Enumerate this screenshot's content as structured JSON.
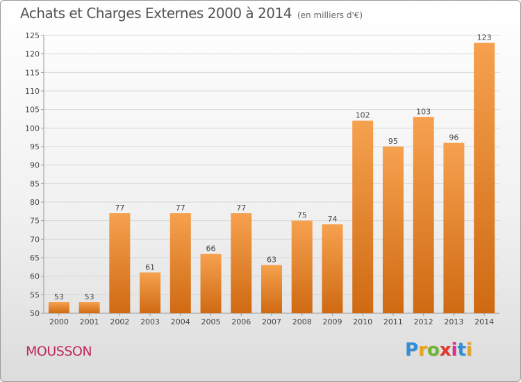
{
  "header": {
    "title": "Achats et Charges Externes 2000 à 2014",
    "subtitle": "(en milliers d'€)"
  },
  "footer": {
    "commune": "MOUSSON",
    "logo": "Proxiti",
    "logo_colors": [
      "#2f8fd8",
      "#e8a21a",
      "#6fb52d",
      "#e23a2a",
      "#d62d8f",
      "#2f8fd8",
      "#e8a21a"
    ]
  },
  "colors": {
    "bar_top": "#f6a14f",
    "bar_bottom": "#cf6a12",
    "grid": "#d7d7d7",
    "axis_text": "#444444"
  },
  "chart_data": {
    "type": "bar",
    "title": "Achats et Charges Externes 2000 à 2014",
    "subtitle": "(en milliers d'€)",
    "categories": [
      "2000",
      "2001",
      "2002",
      "2003",
      "2004",
      "2005",
      "2006",
      "2007",
      "2008",
      "2009",
      "2010",
      "2011",
      "2012",
      "2013",
      "2014"
    ],
    "values": [
      53,
      53,
      77,
      61,
      77,
      66,
      77,
      63,
      75,
      74,
      102,
      95,
      103,
      96,
      123
    ],
    "ylim": [
      50,
      125
    ],
    "yticks": [
      50,
      55,
      60,
      65,
      70,
      75,
      80,
      85,
      90,
      95,
      100,
      105,
      110,
      115,
      120,
      125
    ],
    "grid": true,
    "legend": "none"
  }
}
